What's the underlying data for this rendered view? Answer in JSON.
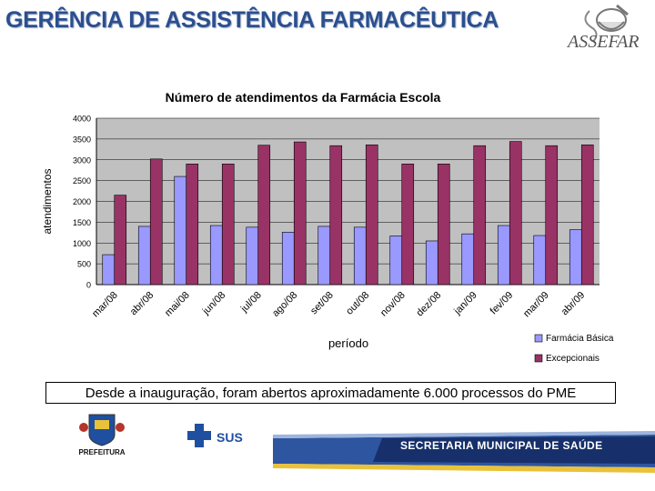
{
  "slide": {
    "title": "GERÊNCIA DE ASSISTÊNCIA FARMACÊUTICA",
    "caption": "Desde a inauguração, foram abertos aproximadamente 6.000 processos do PME"
  },
  "logos": {
    "assefar_text": "ASSEFAR",
    "prefeitura_text": "PREFEITURA",
    "sus_text": "SUS",
    "secretaria_text": "SECRETARIA MUNICIPAL DE SAÚDE"
  },
  "colors": {
    "title": "#2b4f8e",
    "basica": "#9999ff",
    "excepcionais": "#993366",
    "plot_bg": "#c0c0c0",
    "band_dark": "#17306b",
    "band_mid": "#2e55a0",
    "band_yellow": "#e9c23a"
  },
  "chart_data": {
    "type": "bar",
    "title": "Número de atendimentos da Farmácia Escola",
    "xlabel": "período",
    "ylabel": "atendimentos",
    "ylim": [
      0,
      4000
    ],
    "yticks": [
      "0",
      "500",
      "1000",
      "1500",
      "2000",
      "2500",
      "3000",
      "3500",
      "4000"
    ],
    "categories": [
      "mar/08",
      "abr/08",
      "mai/08",
      "jun/08",
      "jul/08",
      "ago/08",
      "set/08",
      "out/08",
      "nov/08",
      "dez/08",
      "jan/09",
      "fev/09",
      "mar/09",
      "abr/09"
    ],
    "series": [
      {
        "name": "Farmácia Básica",
        "values": [
          720,
          1400,
          2600,
          1420,
          1380,
          1260,
          1400,
          1380,
          1170,
          1050,
          1220,
          1420,
          1180,
          1320
        ]
      },
      {
        "name": "Excepcionais",
        "values": [
          2150,
          3020,
          2900,
          2900,
          3350,
          3430,
          3340,
          3360,
          2900,
          2900,
          3340,
          3440,
          3340,
          3360
        ]
      }
    ],
    "legend_position": "bottom-right",
    "grid": true
  }
}
